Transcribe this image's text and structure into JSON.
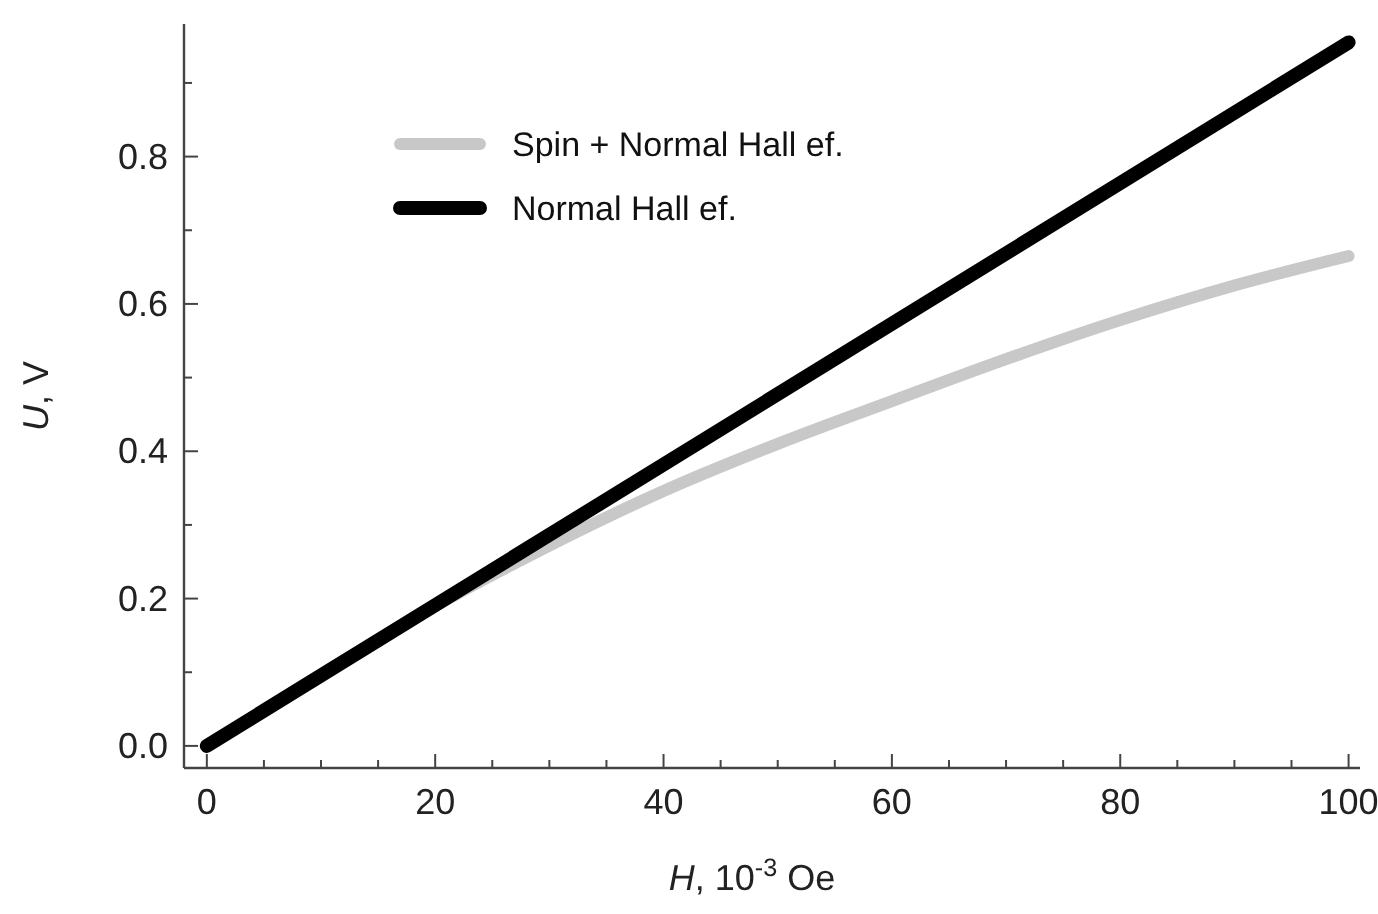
{
  "chart_data": {
    "type": "line",
    "xlabel": "H, 10$^{-3}$ Oe",
    "ylabel": "U, V",
    "xlim": [
      -2,
      101
    ],
    "ylim": [
      -0.03,
      0.98
    ],
    "xticks": [
      0,
      {
        "value": 5,
        "label": null
      },
      {
        "value": 10,
        "label": null
      },
      {
        "value": 15,
        "label": null
      },
      20,
      {
        "value": 25,
        "label": null
      },
      {
        "value": 30,
        "label": null
      },
      {
        "value": 35,
        "label": null
      },
      40,
      {
        "value": 45,
        "label": null
      },
      {
        "value": 50,
        "label": null
      },
      {
        "value": 55,
        "label": null
      },
      60,
      {
        "value": 65,
        "label": null
      },
      {
        "value": 70,
        "label": null
      },
      {
        "value": 75,
        "label": null
      },
      80,
      {
        "value": 85,
        "label": null
      },
      {
        "value": 90,
        "label": null
      },
      {
        "value": 95,
        "label": null
      },
      100
    ],
    "yticks": [
      {
        "value": 0,
        "label": "0.0"
      },
      {
        "value": 0.1,
        "label": null
      },
      {
        "value": 0.2,
        "label": "0.2"
      },
      {
        "value": 0.3,
        "label": null
      },
      {
        "value": 0.4,
        "label": "0.4"
      },
      {
        "value": 0.5,
        "label": null
      },
      {
        "value": 0.6,
        "label": "0.6"
      },
      {
        "value": 0.7,
        "label": null
      },
      {
        "value": 0.8,
        "label": "0.8"
      },
      {
        "value": 0.9,
        "label": null
      }
    ],
    "x": [
      0,
      10,
      20,
      30,
      40,
      50,
      60,
      70,
      80,
      90,
      100
    ],
    "series": [
      {
        "name": "Spin + Normal Hall ef.",
        "color": "#c8c8c8",
        "values": [
          0,
          0.097,
          0.19,
          0.272,
          0.346,
          0.41,
          0.468,
          0.525,
          0.578,
          0.625,
          0.665
        ]
      },
      {
        "name": "Normal Hall ef.",
        "color": "#000000",
        "x": [
          0,
          100
        ],
        "values": [
          0,
          0.955
        ]
      }
    ],
    "grid": false,
    "legend": "top left",
    "line_style": "solid",
    "marker": "none"
  }
}
